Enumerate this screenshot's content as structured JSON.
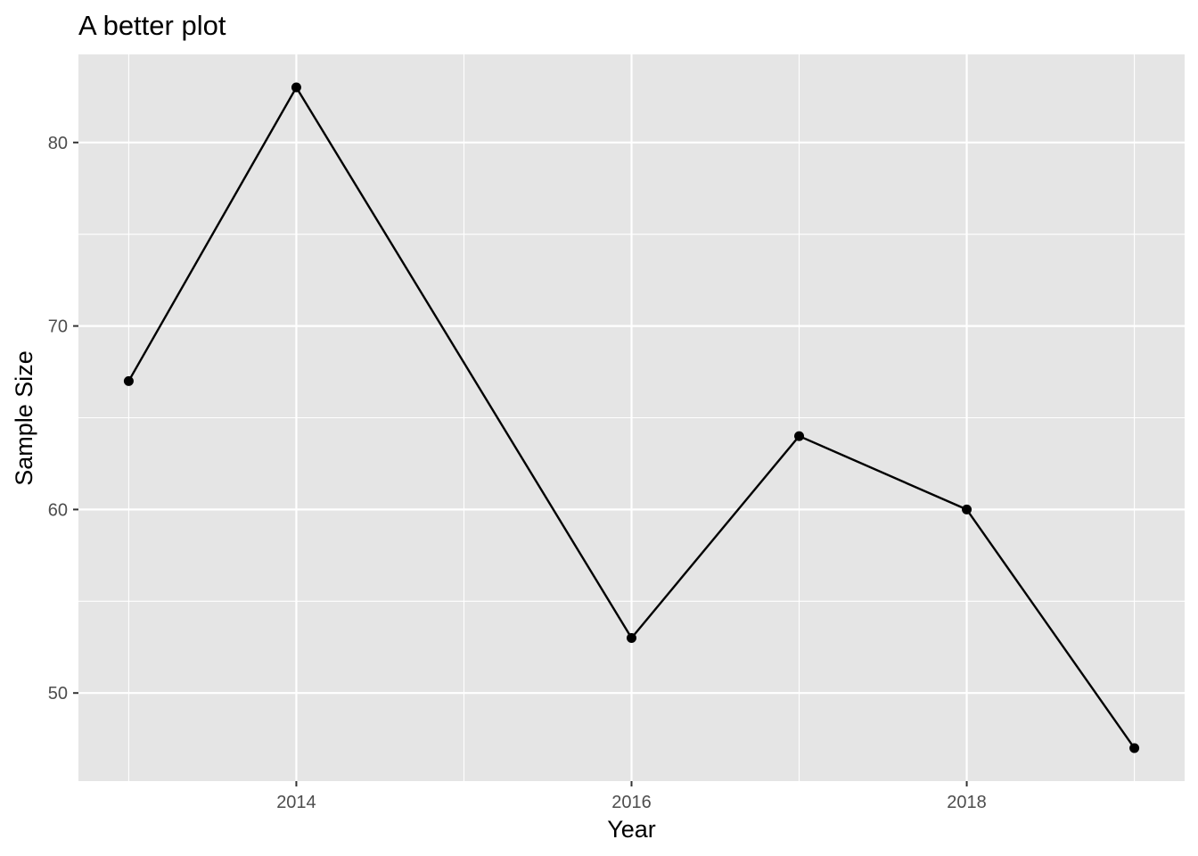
{
  "chart_data": {
    "type": "line",
    "title": "A better plot",
    "xlabel": "Year",
    "ylabel": "Sample Size",
    "x": [
      2013,
      2014,
      2015,
      2016,
      2017,
      2018,
      2019
    ],
    "series": [
      {
        "values": [
          67,
          83,
          68,
          53,
          64,
          60,
          47
        ],
        "show_point": [
          true,
          true,
          false,
          true,
          true,
          true,
          true
        ]
      }
    ],
    "x_ticks": [
      2014,
      2016,
      2018
    ],
    "x_tick_labels": [
      "2014",
      "2016",
      "2018"
    ],
    "y_ticks": [
      50,
      60,
      70,
      80
    ],
    "y_tick_labels": [
      "50",
      "60",
      "70",
      "80"
    ],
    "xlim": [
      2012.7,
      2019.3
    ],
    "ylim": [
      45.2,
      84.8
    ],
    "grid": true,
    "panel_background": "#e5e5e5",
    "grid_color": "#ffffff",
    "line_color": "#000000",
    "point_color": "#000000",
    "legend": "none"
  }
}
